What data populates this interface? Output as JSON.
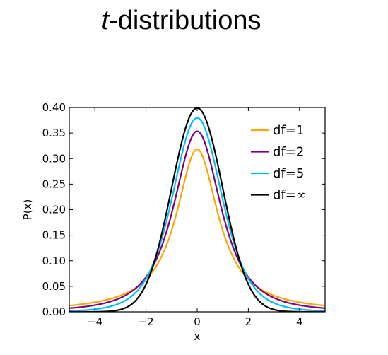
{
  "title": {
    "italic": "t",
    "rest": "-distributions"
  },
  "chart_data": {
    "type": "line",
    "title": "t-distributions",
    "xlabel": "x",
    "ylabel": "P(x)",
    "xlim": [
      -5,
      5
    ],
    "ylim": [
      0,
      0.4
    ],
    "xticks": [
      -4,
      -2,
      0,
      2,
      4
    ],
    "xtick_labels": [
      "−4",
      "−2",
      "0",
      "2",
      "4"
    ],
    "yticks": [
      0.0,
      0.05,
      0.1,
      0.15,
      0.2,
      0.25,
      0.3,
      0.35,
      0.4
    ],
    "ytick_labels": [
      "0.00",
      "0.05",
      "0.10",
      "0.15",
      "0.20",
      "0.25",
      "0.30",
      "0.35",
      "0.40"
    ],
    "grid": false,
    "legend_position": "top-right",
    "x": [
      -5,
      -4,
      -3,
      -2,
      -1.5,
      -1,
      -0.5,
      0,
      0.5,
      1,
      1.5,
      2,
      3,
      4,
      5
    ],
    "series": [
      {
        "name": "df=1",
        "color": "#ffa500",
        "df": 1,
        "values": [
          0.0122,
          0.0187,
          0.0318,
          0.0637,
          0.0979,
          0.1592,
          0.2546,
          0.3183,
          0.2546,
          0.1592,
          0.0979,
          0.0637,
          0.0318,
          0.0187,
          0.0122
        ]
      },
      {
        "name": "df=2",
        "color": "#800080",
        "df": 2,
        "values": [
          0.0071,
          0.0131,
          0.027,
          0.068,
          0.114,
          0.1925,
          0.2962,
          0.3536,
          0.2962,
          0.1925,
          0.114,
          0.068,
          0.027,
          0.0131,
          0.0071
        ]
      },
      {
        "name": "df=5",
        "color": "#00bfff",
        "df": 5,
        "values": [
          0.0018,
          0.0051,
          0.0173,
          0.0651,
          0.1245,
          0.2197,
          0.3279,
          0.3796,
          0.3279,
          0.2197,
          0.1245,
          0.0651,
          0.0173,
          0.0051,
          0.0018
        ]
      },
      {
        "name": "df=∞",
        "color": "#000000",
        "df": "inf",
        "values": [
          0.0,
          0.0001,
          0.0044,
          0.054,
          0.1295,
          0.242,
          0.3521,
          0.3989,
          0.3521,
          0.242,
          0.1295,
          0.054,
          0.0044,
          0.0001,
          0.0
        ]
      }
    ]
  }
}
